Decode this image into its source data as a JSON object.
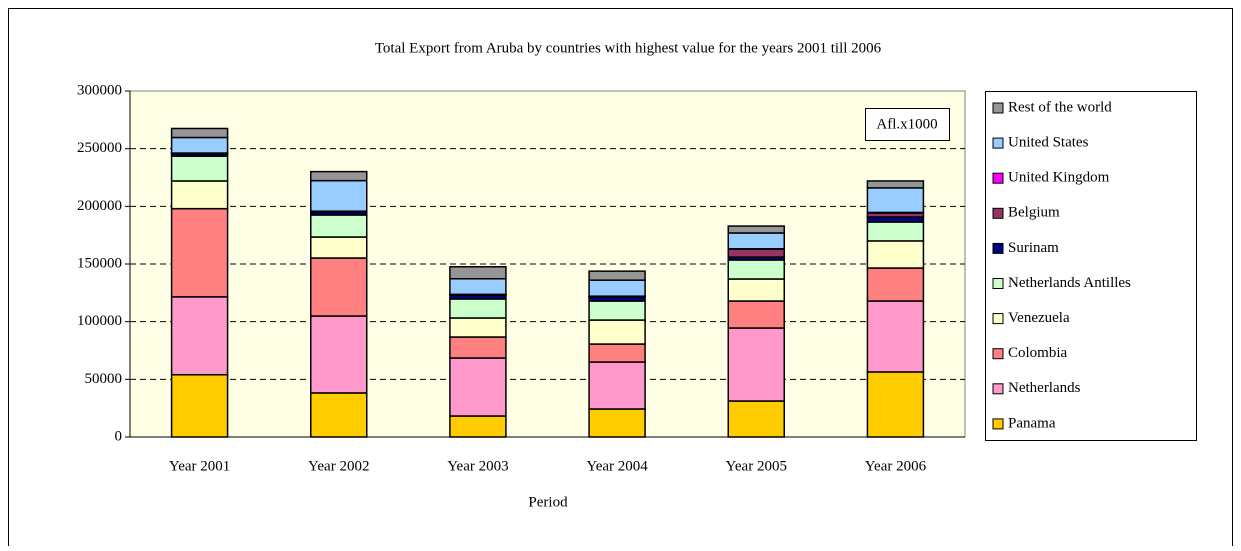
{
  "chart_data": {
    "type": "stacked_bar",
    "title": "Total Export from Aruba by countries with highest value for the years 2001 till 2006",
    "x_label": "Period",
    "annotation": "Afl.x1000",
    "categories": [
      "Year 2001",
      "Year 2002",
      "Year 2003",
      "Year 2004",
      "Year 2005",
      "Year 2006"
    ],
    "series": [
      {
        "name": "Panama",
        "color": "#ffcc00",
        "values": [
          54000,
          38200,
          18200,
          24300,
          31200,
          56400
        ]
      },
      {
        "name": "Netherlands",
        "color": "#ff99cc",
        "values": [
          67500,
          66700,
          50300,
          40700,
          63300,
          61500
        ]
      },
      {
        "name": "Colombia",
        "color": "#ff8080",
        "values": [
          76500,
          50300,
          18200,
          15600,
          23400,
          28600
        ]
      },
      {
        "name": "Venezuela",
        "color": "#ffffcc",
        "values": [
          24000,
          18200,
          16500,
          20800,
          19100,
          23500
        ]
      },
      {
        "name": "Netherlands Antilles",
        "color": "#ccffcc",
        "values": [
          21500,
          19100,
          16500,
          16500,
          16500,
          16400
        ]
      },
      {
        "name": "Surinam",
        "color": "#000080",
        "values": [
          2000,
          2600,
          3300,
          3500,
          2500,
          4400
        ]
      },
      {
        "name": "Belgium",
        "color": "#993366",
        "values": [
          500,
          500,
          500,
          500,
          7000,
          3400
        ]
      },
      {
        "name": "United Kingdom",
        "color": "#ff00ff",
        "values": [
          200,
          200,
          200,
          200,
          200,
          500
        ]
      },
      {
        "name": "United States",
        "color": "#99ccff",
        "values": [
          13500,
          26500,
          13500,
          13900,
          13700,
          21300
        ]
      },
      {
        "name": "Rest of the world",
        "color": "#969696",
        "values": [
          7800,
          7800,
          10400,
          7800,
          6000,
          6000
        ]
      }
    ],
    "ylim": [
      0,
      300000
    ],
    "yticks": [
      0,
      50000,
      100000,
      150000,
      200000,
      250000,
      300000
    ],
    "grid": true,
    "legend": "right"
  }
}
